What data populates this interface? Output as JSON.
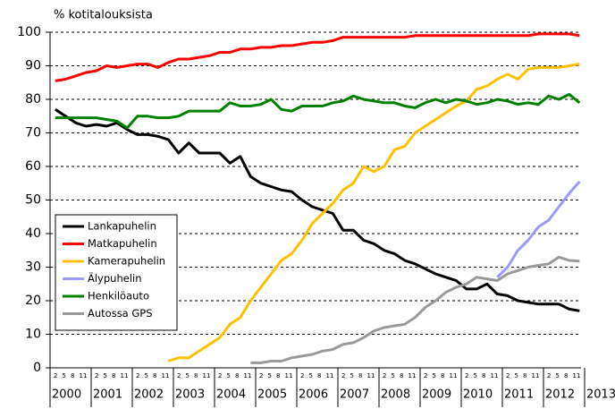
{
  "chart_data": {
    "type": "line",
    "y_label": "% kotitalouksista",
    "x": [
      2000.125,
      2000.375,
      2000.625,
      2000.875,
      2001.125,
      2001.375,
      2001.625,
      2001.875,
      2002.125,
      2002.375,
      2002.625,
      2002.875,
      2003.125,
      2003.375,
      2003.625,
      2003.875,
      2004.125,
      2004.375,
      2004.625,
      2004.875,
      2005.125,
      2005.375,
      2005.625,
      2005.875,
      2006.125,
      2006.375,
      2006.625,
      2006.875,
      2007.125,
      2007.375,
      2007.625,
      2007.875,
      2008.125,
      2008.375,
      2008.625,
      2008.875,
      2009.125,
      2009.375,
      2009.625,
      2009.875,
      2010.125,
      2010.375,
      2010.625,
      2010.875,
      2011.125,
      2011.375,
      2011.625,
      2011.875,
      2012.125,
      2012.375,
      2012.625,
      2012.875
    ],
    "month_labels": [
      2,
      5,
      8,
      11
    ],
    "xlim": [
      2000,
      2013
    ],
    "xticks": [
      2000,
      2001,
      2002,
      2003,
      2004,
      2005,
      2006,
      2007,
      2008,
      2009,
      2010,
      2011,
      2012,
      2013
    ],
    "ylim": [
      0,
      100
    ],
    "yticks": [
      0,
      10,
      20,
      30,
      40,
      50,
      60,
      70,
      80,
      90,
      100
    ],
    "grid": true,
    "legend": "lower left",
    "series": [
      {
        "name": "Lankapuhelin",
        "color": "#000000",
        "values": [
          77,
          75,
          73,
          72,
          72.5,
          72,
          73,
          71,
          69.5,
          69.5,
          69,
          68,
          64,
          67,
          64,
          64,
          64,
          61,
          63,
          57,
          55,
          54,
          53,
          52.5,
          50,
          48,
          47,
          46,
          41,
          41,
          38,
          37,
          35,
          34,
          32,
          31,
          29.5,
          28,
          27,
          26,
          23.5,
          23.5,
          25,
          22,
          21.5,
          20,
          19.5,
          19,
          19,
          19,
          17.5,
          17
        ]
      },
      {
        "name": "Matkapuhelin",
        "color": "#ff0000",
        "values": [
          85.5,
          86,
          87,
          88,
          88.5,
          90,
          89.5,
          90,
          90.5,
          90.5,
          89.5,
          91,
          92,
          92,
          92.5,
          93,
          94,
          94,
          95,
          95,
          95.5,
          95.5,
          96,
          96,
          96.5,
          97,
          97,
          97.5,
          98.5,
          98.5,
          98.5,
          98.5,
          98.5,
          98.5,
          98.5,
          99,
          99,
          99,
          99,
          99,
          99,
          99,
          99,
          99,
          99,
          99,
          99,
          99.5,
          99.5,
          99.5,
          99.5,
          99
        ]
      },
      {
        "name": "Kamerapuhelin",
        "color": "#ffc000",
        "values": [
          null,
          null,
          null,
          null,
          null,
          null,
          null,
          null,
          null,
          null,
          null,
          2,
          3,
          3,
          5,
          7,
          9,
          13,
          15,
          20,
          24,
          28,
          32,
          34,
          38,
          43,
          46,
          49,
          53,
          55,
          60,
          58.5,
          60,
          65,
          66,
          70,
          72,
          74,
          76,
          78,
          79.5,
          83,
          84,
          86,
          87.5,
          86,
          89,
          89.5,
          89.5,
          89.5,
          90,
          90.5
        ]
      },
      {
        "name": "Älypuhelin",
        "color": "#9999ff",
        "values": [
          null,
          null,
          null,
          null,
          null,
          null,
          null,
          null,
          null,
          null,
          null,
          null,
          null,
          null,
          null,
          null,
          null,
          null,
          null,
          null,
          null,
          null,
          null,
          null,
          null,
          null,
          null,
          null,
          null,
          null,
          null,
          null,
          null,
          null,
          null,
          null,
          null,
          null,
          null,
          null,
          null,
          null,
          null,
          27,
          30,
          35,
          38,
          42,
          44,
          48,
          52,
          55.5
        ]
      },
      {
        "name": "Henkilöauto",
        "color": "#008000",
        "values": [
          74.5,
          74.5,
          74.5,
          74.5,
          74.5,
          74,
          73.5,
          71.5,
          75,
          75,
          74.5,
          74.5,
          75,
          76.5,
          76.5,
          76.5,
          76.5,
          79,
          78,
          78,
          78.5,
          80,
          77,
          76.5,
          78,
          78,
          78,
          79,
          79.5,
          81,
          80,
          79.5,
          79,
          79,
          78,
          77.5,
          79,
          80,
          79,
          80,
          79.5,
          78.5,
          79,
          80,
          79.5,
          78.5,
          79,
          78.5,
          81,
          80,
          81.5,
          79
        ]
      },
      {
        "name": "Autossa GPS",
        "color": "#999999",
        "values": [
          null,
          null,
          null,
          null,
          null,
          null,
          null,
          null,
          null,
          null,
          null,
          null,
          null,
          null,
          null,
          null,
          null,
          null,
          null,
          1.5,
          1.5,
          2,
          2,
          3,
          3.5,
          4,
          5,
          5.5,
          7,
          7.5,
          9,
          11,
          12,
          12.5,
          13,
          15,
          18,
          20,
          22.5,
          24,
          25,
          27,
          26.5,
          26,
          28,
          29,
          30,
          30.5,
          31,
          33,
          32,
          31.8
        ]
      }
    ]
  }
}
